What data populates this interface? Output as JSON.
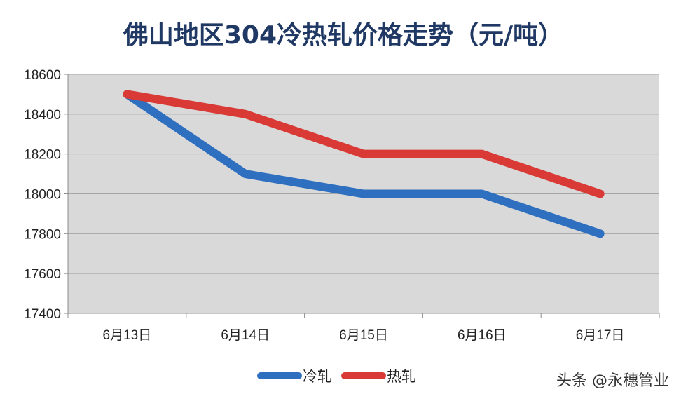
{
  "chart_data": {
    "type": "line",
    "title": "佛山地区304冷热轧价格走势（元/吨）",
    "categories": [
      "6月13日",
      "6月14日",
      "6月15日",
      "6月16日",
      "6月17日"
    ],
    "series": [
      {
        "name": "冷轧",
        "color": "#2e6fbf",
        "values": [
          18500,
          18100,
          18000,
          18000,
          17800
        ]
      },
      {
        "name": "热轧",
        "color": "#d93a35",
        "values": [
          18500,
          18400,
          18200,
          18200,
          18000
        ]
      }
    ],
    "ylim": [
      17400,
      18600
    ],
    "yticks": [
      17400,
      17600,
      17800,
      18000,
      18200,
      18400,
      18600
    ],
    "grid": true,
    "legend": "bottom"
  },
  "watermark": "头条 @永穗管业",
  "colors": {
    "plot_background": "#d9d9d9",
    "title": "#1f3864"
  }
}
